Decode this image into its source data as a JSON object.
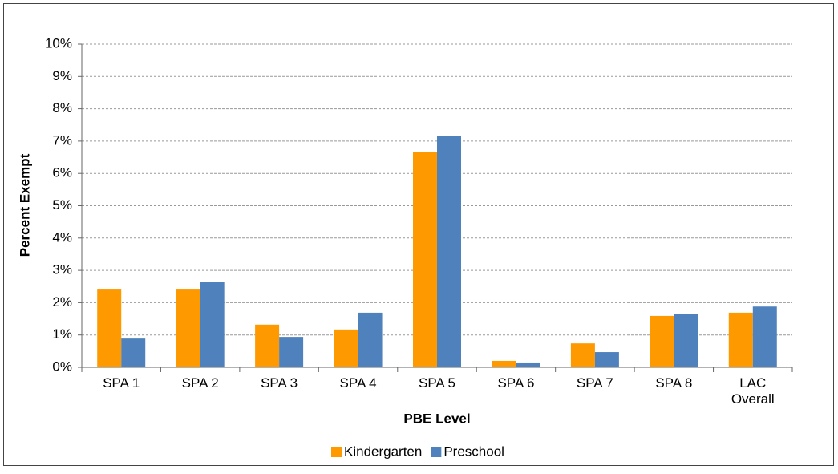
{
  "chart_data": {
    "type": "bar",
    "x_label": "PBE Level",
    "y_label": "Percent Exempt",
    "categories": [
      "SPA 1",
      "SPA 2",
      "SPA 3",
      "SPA 4",
      "SPA 5",
      "SPA 6",
      "SPA 7",
      "SPA 8",
      "LAC Overall"
    ],
    "series": [
      {
        "name": "Kindergarten",
        "color": "#FF9900",
        "values": [
          2.43,
          2.43,
          1.32,
          1.17,
          6.67,
          0.2,
          0.74,
          1.59,
          1.69
        ]
      },
      {
        "name": "Preschool",
        "color": "#4F81BD",
        "values": [
          0.89,
          2.63,
          0.94,
          1.69,
          7.15,
          0.15,
          0.47,
          1.64,
          1.88
        ]
      }
    ],
    "ylim": [
      0,
      10
    ],
    "yticks": [
      {
        "value": 0,
        "label": "0%"
      },
      {
        "value": 1,
        "label": "1%"
      },
      {
        "value": 2,
        "label": "2%"
      },
      {
        "value": 3,
        "label": "3%"
      },
      {
        "value": 4,
        "label": "4%"
      },
      {
        "value": 5,
        "label": "5%"
      },
      {
        "value": 6,
        "label": "6%"
      },
      {
        "value": 7,
        "label": "7%"
      },
      {
        "value": 8,
        "label": "8%"
      },
      {
        "value": 9,
        "label": "9%"
      },
      {
        "value": 10,
        "label": "10%"
      }
    ],
    "grid": true,
    "legend": "bottom"
  }
}
